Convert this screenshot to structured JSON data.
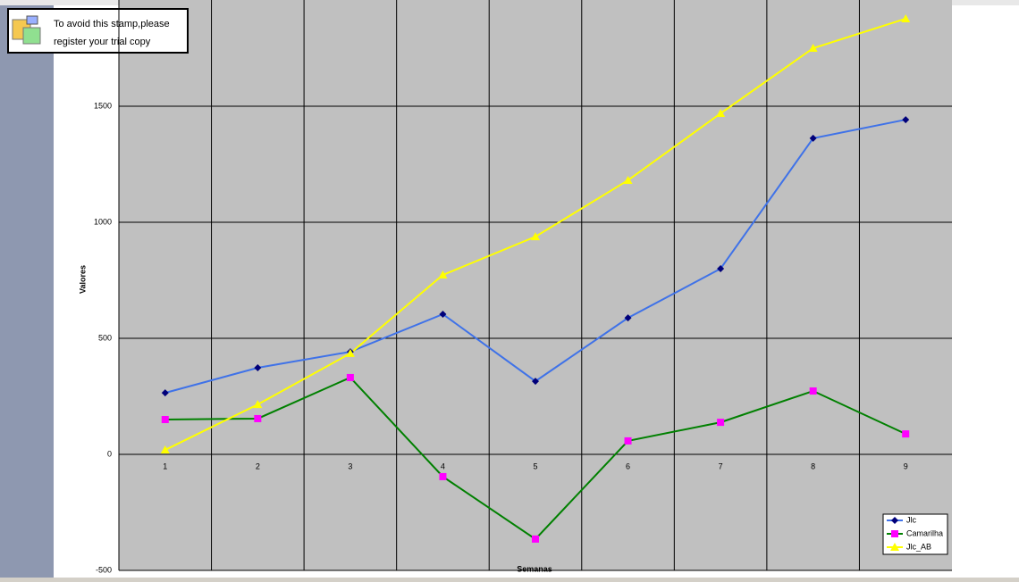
{
  "stamp": {
    "lines": [
      "To avoid this stamp,please",
      "register your trial copy"
    ]
  },
  "chart_data": {
    "type": "line",
    "x_label": "Semanas",
    "y_label": "Valores",
    "categories": [
      "1",
      "2",
      "3",
      "4",
      "5",
      "6",
      "7",
      "8",
      "9"
    ],
    "series": [
      {
        "name": "Jlc",
        "color": "#3f72e8",
        "marker": "diamond",
        "marker_color": "#00007a",
        "values": [
          265,
          373,
          442,
          604,
          315,
          588,
          800,
          1362,
          1442
        ]
      },
      {
        "name": "Camarilha",
        "color": "#008000",
        "marker": "square",
        "marker_color": "#ff00ff",
        "values": [
          150,
          154,
          331,
          -96,
          -365,
          58,
          138,
          273,
          88
        ]
      },
      {
        "name": "Jlc_AB",
        "color": "#ffff00",
        "marker": "triangle",
        "marker_color": "#ffff00",
        "values": [
          19,
          215,
          435,
          773,
          938,
          1181,
          1469,
          1750,
          1877
        ]
      }
    ],
    "ylim": [
      -500,
      2000
    ],
    "yticks": [
      -500,
      0,
      500,
      1000,
      1500
    ],
    "grid": true,
    "legend": "bottom-right"
  }
}
